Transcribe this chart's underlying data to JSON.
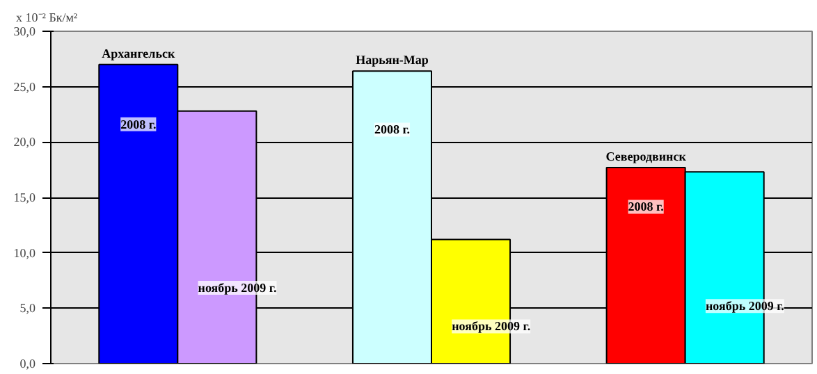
{
  "chart_data": {
    "type": "bar",
    "ylabel": "х 10⁻² Бк/м²",
    "categories": [
      "Архангельск",
      "Нарьян-Мар",
      "Северодвинск"
    ],
    "series": [
      {
        "name": "2008 г.",
        "colors": [
          "#0000ff",
          "#ccffff",
          "#ff0000"
        ],
        "values": [
          27.0,
          26.4,
          17.7
        ]
      },
      {
        "name": "ноябрь 2009 г.",
        "colors": [
          "#cc99ff",
          "#ffff00",
          "#00ffff"
        ],
        "values": [
          22.8,
          11.2,
          17.3
        ]
      }
    ],
    "ylim": [
      0,
      30
    ],
    "yticks": [
      {
        "value": 0,
        "label": "0,0"
      },
      {
        "value": 5,
        "label": "5,0"
      },
      {
        "value": 10,
        "label": "10,0"
      },
      {
        "value": 15,
        "label": "15,0"
      },
      {
        "value": 20,
        "label": "20,0"
      },
      {
        "value": 25,
        "label": "25,0"
      },
      {
        "value": 30,
        "label": "30,0"
      }
    ],
    "grid": "y"
  }
}
